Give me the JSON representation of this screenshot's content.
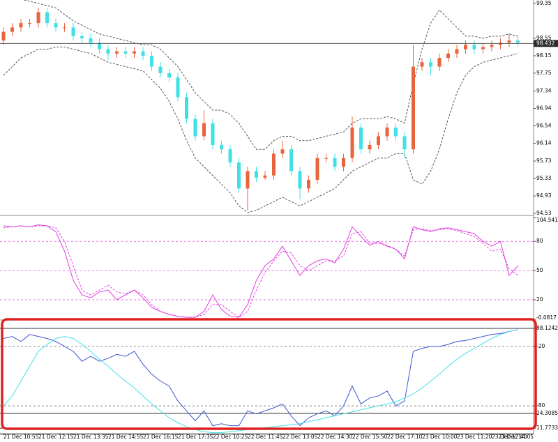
{
  "chart_data": [
    {
      "type": "candlestick",
      "categories": [
        "21 Dec 10:55",
        null,
        null,
        null,
        "21 Dec 12:15",
        null,
        null,
        null,
        "21 Dec 13:35",
        null,
        null,
        null,
        "21 Dec 14:55",
        null,
        null,
        null,
        "21 Dec 16:15",
        null,
        null,
        null,
        "21 Dec 17:35",
        null,
        null,
        null,
        "22 Dec 10:25",
        null,
        null,
        null,
        "22 Dec 11:45",
        null,
        null,
        null,
        "22 Dec 13:05",
        null,
        null,
        null,
        "22 Dec 14:30",
        null,
        null,
        null,
        "22 Dec 15:50",
        null,
        null,
        null,
        "22 Dec 17:10",
        null,
        null,
        null,
        "23 Dec 10:00",
        null,
        null,
        null,
        "23 Dec 11:20",
        null,
        null,
        null,
        "23 Dec 12:40",
        null,
        null,
        "23 Dec 14:05"
      ],
      "open": [
        98.5,
        98.7,
        98.8,
        98.9,
        98.9,
        99.15,
        98.9,
        98.8,
        98.8,
        98.6,
        98.55,
        98.45,
        98.3,
        98.2,
        98.25,
        98.2,
        98.25,
        98.15,
        97.9,
        97.75,
        97.65,
        97.2,
        96.7,
        96.3,
        96.6,
        96.1,
        96.0,
        95.7,
        95.1,
        95.5,
        95.35,
        95.4,
        95.9,
        96.0,
        95.5,
        95.1,
        95.3,
        95.8,
        95.8,
        95.6,
        95.8,
        96.5,
        96.0,
        96.1,
        96.3,
        96.5,
        96.3,
        96.0,
        97.9,
        98.0,
        97.9,
        98.1,
        98.2,
        98.3,
        98.4,
        98.3,
        98.35,
        98.4,
        98.45,
        98.5
      ],
      "high": [
        98.8,
        98.9,
        99.0,
        99.0,
        99.25,
        99.25,
        99.0,
        98.9,
        98.9,
        98.7,
        98.65,
        98.55,
        98.4,
        98.35,
        98.35,
        98.35,
        98.35,
        98.25,
        98.0,
        97.85,
        97.75,
        97.3,
        96.8,
        96.9,
        96.7,
        96.2,
        96.1,
        95.8,
        95.6,
        95.6,
        95.5,
        96.0,
        96.2,
        96.1,
        95.6,
        95.4,
        95.9,
        95.9,
        95.9,
        95.9,
        96.75,
        96.6,
        96.2,
        96.4,
        96.6,
        96.6,
        96.4,
        98.4,
        98.1,
        98.1,
        98.2,
        98.3,
        98.4,
        98.5,
        98.5,
        98.45,
        98.5,
        98.55,
        98.65,
        98.6
      ],
      "low": [
        98.4,
        98.6,
        98.7,
        98.8,
        98.8,
        98.8,
        98.7,
        98.7,
        98.5,
        98.45,
        98.35,
        98.2,
        98.05,
        98.1,
        98.1,
        98.1,
        98.05,
        97.8,
        97.65,
        97.55,
        97.1,
        96.6,
        96.2,
        96.2,
        96.0,
        95.9,
        95.6,
        95.0,
        94.6,
        95.25,
        95.3,
        95.3,
        95.8,
        95.4,
        94.85,
        95.0,
        95.2,
        95.7,
        95.5,
        95.5,
        95.7,
        95.9,
        95.9,
        96.0,
        96.2,
        96.2,
        95.8,
        95.9,
        97.8,
        97.7,
        97.8,
        98.0,
        98.1,
        98.2,
        98.2,
        98.2,
        98.25,
        98.3,
        98.35,
        98.35
      ],
      "close": [
        98.7,
        98.8,
        98.9,
        98.9,
        99.15,
        98.9,
        98.8,
        98.8,
        98.6,
        98.55,
        98.45,
        98.3,
        98.2,
        98.25,
        98.2,
        98.25,
        98.15,
        97.9,
        97.75,
        97.65,
        97.2,
        96.7,
        96.3,
        96.6,
        96.1,
        96.0,
        95.7,
        95.1,
        95.5,
        95.35,
        95.4,
        95.9,
        96.0,
        95.5,
        95.1,
        95.3,
        95.8,
        95.8,
        95.6,
        95.8,
        96.5,
        96.0,
        96.1,
        96.3,
        96.5,
        96.3,
        96.0,
        97.9,
        98.0,
        97.9,
        98.1,
        98.2,
        98.3,
        98.4,
        98.3,
        98.35,
        98.4,
        98.45,
        98.5,
        98.45
      ],
      "up_color": "#e8643c",
      "down_color": "#3fe0e6",
      "lines": [
        {
          "color": "#555555",
          "dashed": true,
          "values": [
            99.5,
            99.5,
            99.45,
            99.4,
            99.35,
            99.3,
            99.25,
            99.1,
            98.95,
            98.85,
            98.75,
            98.65,
            98.6,
            98.55,
            98.5,
            98.45,
            98.4,
            98.4,
            98.3,
            98.1,
            97.9,
            97.6,
            97.3,
            97.1,
            96.9,
            96.9,
            96.8,
            96.6,
            96.3,
            96.0,
            96.0,
            96.2,
            96.3,
            96.3,
            96.2,
            96.2,
            96.25,
            96.3,
            96.35,
            96.4,
            96.6,
            96.7,
            96.7,
            96.7,
            96.75,
            96.7,
            96.6,
            97.5,
            98.3,
            98.9,
            99.2,
            99.0,
            98.8,
            98.6,
            98.6,
            98.55,
            98.6,
            98.6,
            98.65,
            98.6
          ]
        },
        {
          "color": "#555555",
          "dashed": true,
          "values": [
            97.7,
            97.9,
            98.1,
            98.2,
            98.3,
            98.3,
            98.35,
            98.35,
            98.3,
            98.25,
            98.2,
            98.1,
            98.0,
            97.95,
            97.9,
            97.85,
            97.8,
            97.6,
            97.4,
            97.1,
            96.7,
            96.2,
            95.8,
            95.6,
            95.4,
            95.2,
            95.0,
            94.7,
            94.55,
            94.6,
            94.7,
            94.8,
            94.9,
            94.8,
            94.7,
            94.8,
            94.9,
            95.0,
            95.1,
            95.3,
            95.5,
            95.6,
            95.7,
            95.8,
            95.8,
            95.9,
            95.9,
            95.3,
            95.2,
            95.5,
            96.0,
            96.7,
            97.3,
            97.7,
            97.9,
            98.0,
            98.05,
            98.1,
            98.15,
            98.2
          ]
        }
      ],
      "current_value": 98.432,
      "ylim": [
        94.498,
        99.43
      ],
      "yticks": [
        99.35,
        98.55,
        98.15,
        97.75,
        97.34,
        96.94,
        96.54,
        96.14,
        95.73,
        95.33,
        94.93,
        94.53
      ],
      "grid": false
    },
    {
      "type": "line",
      "series": [
        {
          "color": "#e040e0",
          "dashed": false,
          "values": [
            96,
            95,
            96,
            95,
            97,
            96,
            90,
            70,
            40,
            25,
            22,
            28,
            30,
            20,
            25,
            30,
            22,
            12,
            8,
            5,
            3,
            2,
            2,
            8,
            25,
            10,
            3,
            2,
            15,
            40,
            55,
            62,
            75,
            60,
            45,
            55,
            60,
            62,
            58,
            72,
            95,
            85,
            76,
            80,
            75,
            72,
            62,
            95,
            92,
            90,
            93,
            94,
            92,
            90,
            88,
            80,
            75,
            80,
            45,
            55
          ]
        },
        {
          "color": "#e040e0",
          "dashed": true,
          "values": [
            94,
            95,
            96,
            95,
            96,
            96,
            94,
            80,
            55,
            30,
            25,
            30,
            35,
            28,
            26,
            30,
            25,
            15,
            8,
            5,
            3,
            2,
            2,
            5,
            15,
            15,
            8,
            2,
            8,
            30,
            48,
            60,
            70,
            68,
            55,
            50,
            55,
            60,
            60,
            65,
            88,
            90,
            78,
            78,
            76,
            72,
            65,
            92,
            93,
            91,
            92,
            93,
            91,
            88,
            85,
            78,
            70,
            72,
            52,
            45
          ]
        }
      ],
      "ylim": [
        -0.0817,
        104.5416
      ],
      "yticks": [
        104.5416,
        80,
        50,
        20,
        -0.0817
      ],
      "grid_color": "#e040e0"
    },
    {
      "type": "line",
      "series": [
        {
          "color": "#3a55d0",
          "dashed": false,
          "values": [
            -12,
            -10,
            -15,
            -8,
            -10,
            -12,
            -15,
            -20,
            -25,
            -35,
            -30,
            -35,
            -32,
            -28,
            -30,
            -25,
            -38,
            -48,
            -55,
            -60,
            -75,
            -85,
            -95,
            -85,
            -100,
            -98,
            -100,
            -100,
            -85,
            -88,
            -85,
            -82,
            -78,
            -90,
            -100,
            -92,
            -88,
            -85,
            -90,
            -80,
            -60,
            -78,
            -72,
            -70,
            -65,
            -80,
            -75,
            -25,
            -22,
            -20,
            -20,
            -18,
            -15,
            -14,
            -12,
            -10,
            -8,
            -7,
            -5,
            -3
          ]
        },
        {
          "color": "#40e0e8",
          "dashed": false,
          "values": [
            -80,
            -70,
            -55,
            -40,
            -25,
            -18,
            -12,
            -10,
            -12,
            -18,
            -25,
            -33,
            -40,
            -48,
            -55,
            -62,
            -70,
            -78,
            -85,
            -92,
            -97,
            -101,
            -104,
            -106,
            -107,
            -107,
            -106,
            -105,
            -104,
            -103,
            -102,
            -101,
            -100,
            -99,
            -98,
            -96,
            -94,
            -92,
            -90,
            -88,
            -86,
            -84,
            -82,
            -80,
            -78,
            -76,
            -72,
            -68,
            -62,
            -55,
            -48,
            -40,
            -33,
            -27,
            -22,
            -17,
            -12,
            -8,
            -5,
            -3
          ]
        }
      ],
      "ylim": [
        -108,
        1
      ],
      "yticks": [
        {
          "value": -1.8,
          "label": "88.1242"
        },
        -20,
        -80,
        {
          "value": -87.6,
          "label": "24.3085"
        },
        {
          "value": -102.5,
          "label": "11.7733"
        }
      ],
      "grid_color": "#666666"
    }
  ]
}
